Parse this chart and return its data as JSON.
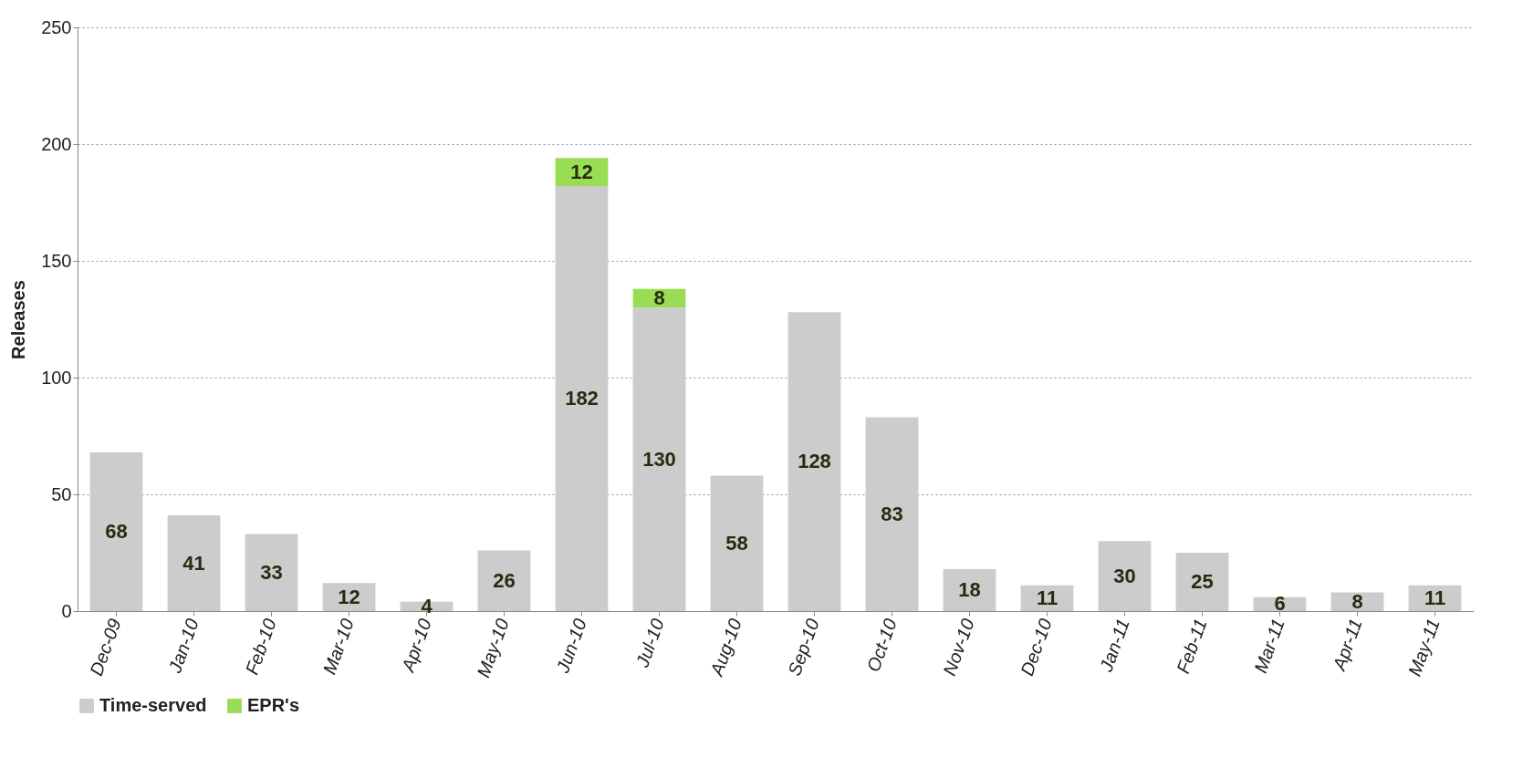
{
  "chart_data": {
    "type": "bar",
    "stacked": true,
    "ylabel": "Releases",
    "categories": [
      "Dec-09",
      "Jan-10",
      "Feb-10",
      "Mar-10",
      "Apr-10",
      "May-10",
      "Jun-10",
      "Jul-10",
      "Aug-10",
      "Sep-10",
      "Oct-10",
      "Nov-10",
      "Dec-10",
      "Jan-11",
      "Feb-11",
      "Mar-11",
      "Apr-11",
      "May-11"
    ],
    "series": [
      {
        "name": "Time-served",
        "color": "#cccccc",
        "values": [
          68,
          41,
          33,
          12,
          4,
          26,
          182,
          130,
          58,
          128,
          83,
          18,
          11,
          30,
          25,
          6,
          8,
          11
        ]
      },
      {
        "name": "EPR's",
        "color": "#99dd55",
        "values": [
          null,
          null,
          null,
          null,
          null,
          null,
          12,
          8,
          null,
          null,
          null,
          null,
          null,
          null,
          null,
          null,
          null,
          null
        ]
      }
    ],
    "ylim": [
      0,
      250
    ],
    "yticks": [
      0,
      50,
      100,
      150,
      200,
      250
    ],
    "grid": "y",
    "legend": "bottom",
    "data_labels": true
  }
}
